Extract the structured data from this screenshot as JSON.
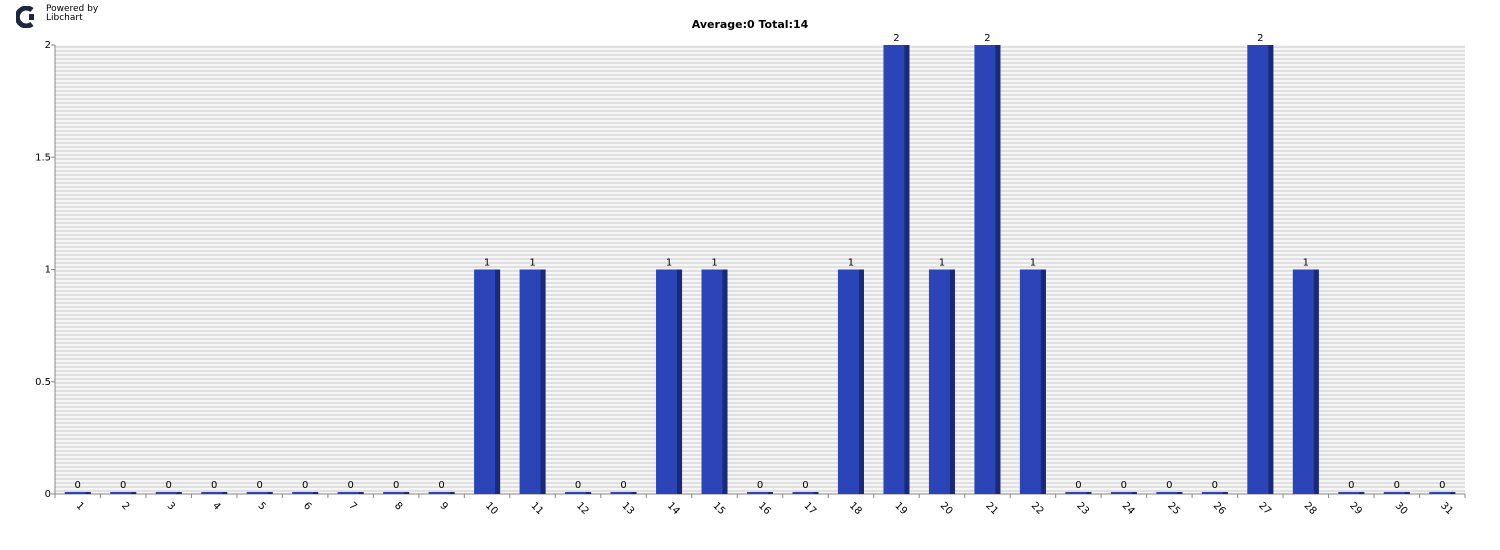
{
  "branding": {
    "line1": "Powered by",
    "line2": "Libchart",
    "logo_icon": "libchart-logo-icon"
  },
  "chart_data": {
    "type": "bar",
    "title": "Average:0  Total:14",
    "xlabel": "",
    "ylabel": "",
    "ylim": [
      0,
      2
    ],
    "y_ticks": [
      0,
      0.5,
      1,
      1.5,
      2
    ],
    "y_tick_labels": [
      "0",
      "0.5",
      "1",
      "1.5",
      "2"
    ],
    "grid": true,
    "legend": "none",
    "categories": [
      "1",
      "2",
      "3",
      "4",
      "5",
      "6",
      "7",
      "8",
      "9",
      "10",
      "11",
      "12",
      "13",
      "14",
      "15",
      "16",
      "17",
      "18",
      "19",
      "20",
      "21",
      "22",
      "23",
      "24",
      "25",
      "26",
      "27",
      "28",
      "29",
      "30",
      "31"
    ],
    "values": [
      0,
      0,
      0,
      0,
      0,
      0,
      0,
      0,
      0,
      1,
      1,
      0,
      0,
      1,
      1,
      0,
      0,
      1,
      2,
      1,
      2,
      1,
      0,
      0,
      0,
      0,
      2,
      1,
      0,
      0,
      0
    ],
    "colors": {
      "bar": "#2b45b8",
      "bar_shadow": "#1a2a78",
      "axis": "#888888",
      "stripe_dark": "#e0e0e0",
      "stripe_light": "#f6f6f6"
    }
  }
}
